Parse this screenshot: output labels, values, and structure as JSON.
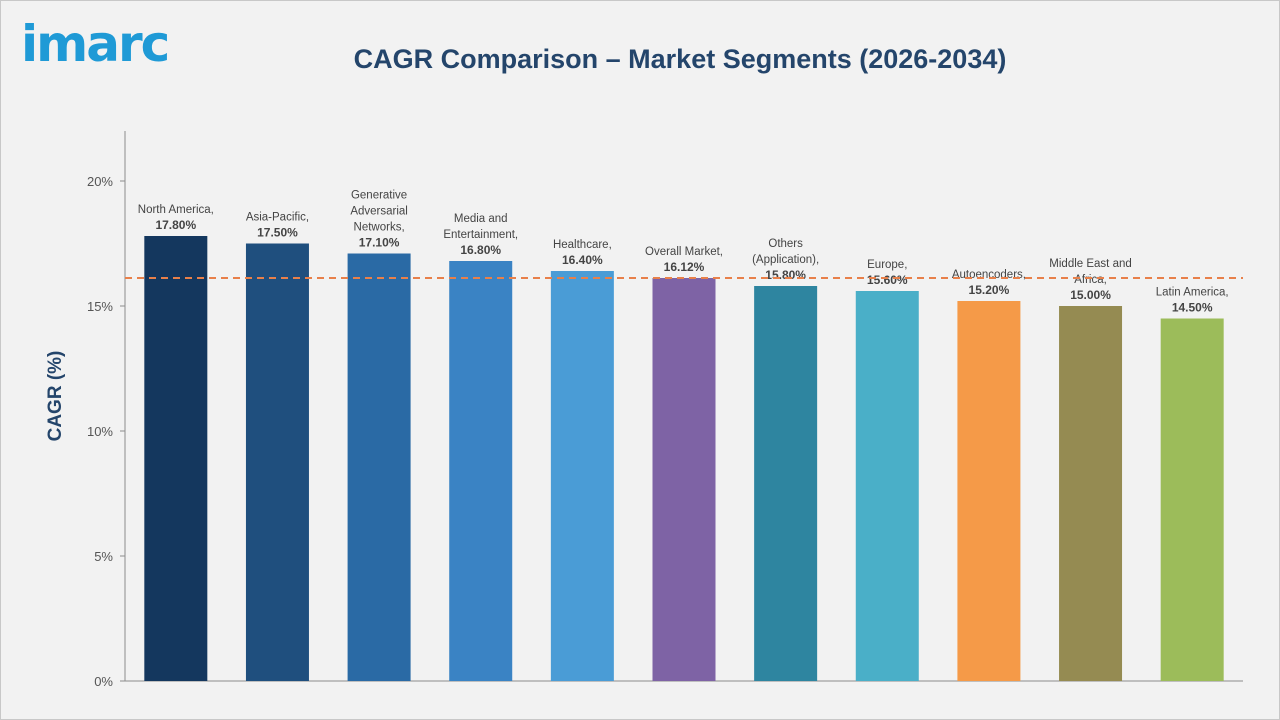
{
  "logo": "imarc",
  "chart_data": {
    "type": "bar",
    "title": "CAGR Comparison – Market Segments (2026-2034)",
    "ylabel": "CAGR (%)",
    "ylim": [
      0,
      22
    ],
    "yticks": [
      {
        "value": 0,
        "label": "0%"
      },
      {
        "value": 5,
        "label": "5%"
      },
      {
        "value": 10,
        "label": "10%"
      },
      {
        "value": 15,
        "label": "15%"
      },
      {
        "value": 20,
        "label": "20%"
      }
    ],
    "reference_line": {
      "value": 16.12,
      "style": "dashed",
      "color": "#e8804a"
    },
    "bars": [
      {
        "label_lines": [
          "North America,"
        ],
        "value": 17.8,
        "value_label": "17.80%",
        "color": "#14375e"
      },
      {
        "label_lines": [
          "Asia-Pacific,"
        ],
        "value": 17.5,
        "value_label": "17.50%",
        "color": "#1f4f7e"
      },
      {
        "label_lines": [
          "Generative",
          "Adversarial",
          "Networks,"
        ],
        "value": 17.1,
        "value_label": "17.10%",
        "color": "#2a6aa5"
      },
      {
        "label_lines": [
          "Media and",
          "Entertainment,"
        ],
        "value": 16.8,
        "value_label": "16.80%",
        "color": "#3a83c4"
      },
      {
        "label_lines": [
          "Healthcare,"
        ],
        "value": 16.4,
        "value_label": "16.40%",
        "color": "#4a9cd6"
      },
      {
        "label_lines": [
          "Overall Market,"
        ],
        "value": 16.12,
        "value_label": "16.12%",
        "color": "#7e63a5"
      },
      {
        "label_lines": [
          "Others",
          "(Application),"
        ],
        "value": 15.8,
        "value_label": "15.80%",
        "color": "#2e85a0"
      },
      {
        "label_lines": [
          "Europe,"
        ],
        "value": 15.6,
        "value_label": "15.60%",
        "color": "#4aafc8"
      },
      {
        "label_lines": [
          "Autoencoders,"
        ],
        "value": 15.2,
        "value_label": "15.20%",
        "color": "#f59a48"
      },
      {
        "label_lines": [
          "Middle East and",
          "Africa,"
        ],
        "value": 15.0,
        "value_label": "15.00%",
        "color": "#958b52"
      },
      {
        "label_lines": [
          "Latin America,"
        ],
        "value": 14.5,
        "value_label": "14.50%",
        "color": "#9cbc5a"
      }
    ]
  }
}
